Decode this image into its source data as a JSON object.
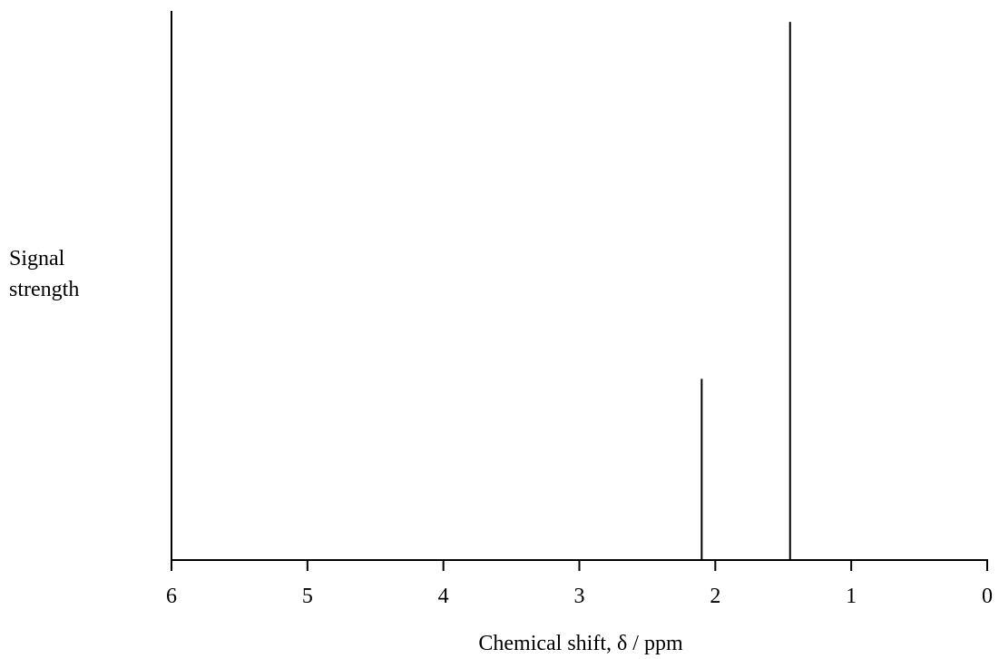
{
  "chart_data": {
    "type": "bar",
    "xlabel": "Chemical shift, δ / ppm",
    "ylabel_lines": [
      "Signal",
      "strength"
    ],
    "x_reversed": true,
    "xlim": [
      6,
      0
    ],
    "ylim": [
      0,
      1
    ],
    "x_ticks": [
      6,
      5,
      4,
      3,
      2,
      1,
      0
    ],
    "peaks": [
      {
        "x": 2.1,
        "y": 0.33
      },
      {
        "x": 1.45,
        "y": 0.98
      }
    ],
    "grid": false,
    "legend": "none"
  }
}
